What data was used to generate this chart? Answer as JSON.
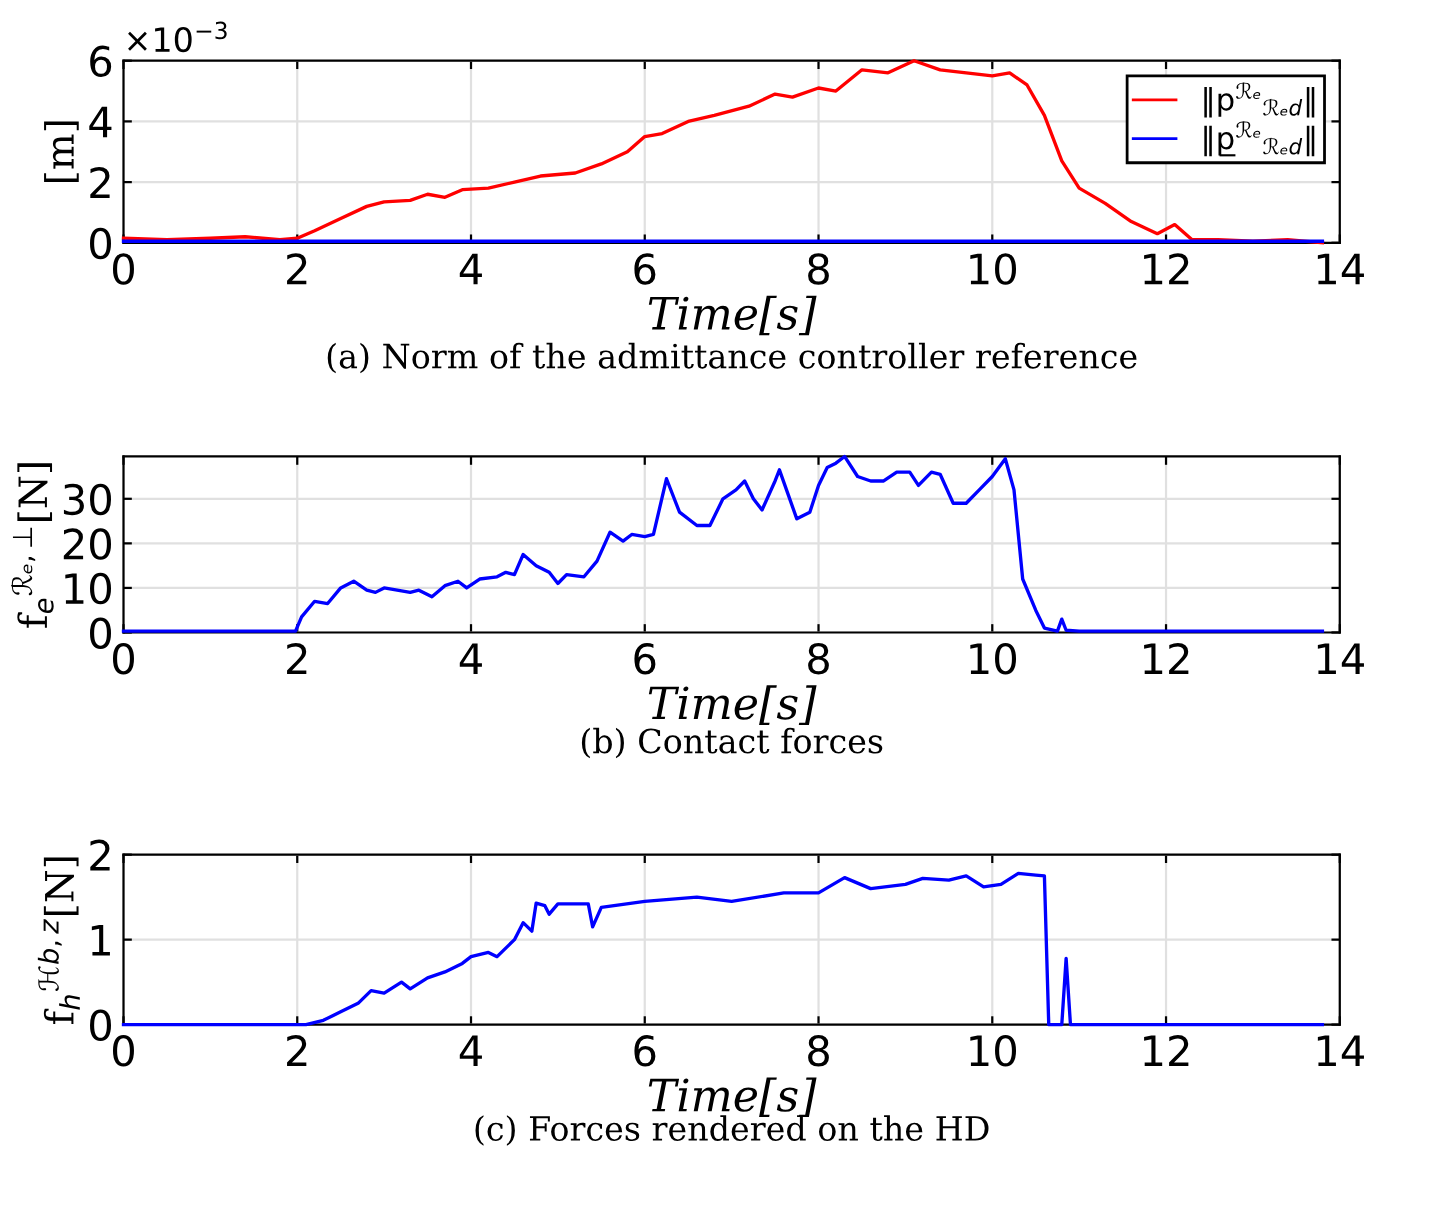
{
  "chart_data": [
    {
      "type": "line",
      "title": "(a) Norm of the admittance controller reference",
      "xlabel": "Time[s]",
      "ylabel": "[m]",
      "annotations": [
        "×10$^{−3}$"
      ],
      "xlim": [
        0,
        14
      ],
      "xticks": [
        0,
        2,
        4,
        6,
        8,
        10,
        12,
        14
      ],
      "ylim": [
        0,
        6
      ],
      "yticks": [
        0,
        2,
        4,
        6
      ],
      "grid": true,
      "legend": "top right",
      "series": [
        {
          "name": "‖p$^{ℛₑ}$$_{ℛₑd}$‖",
          "color": "#ff0000",
          "x": [
            0,
            0.5,
            1,
            1.4,
            1.8,
            2.0,
            2.2,
            2.5,
            2.8,
            3.0,
            3.3,
            3.5,
            3.7,
            3.9,
            4.2,
            4.5,
            4.8,
            5.2,
            5.5,
            5.8,
            6.0,
            6.2,
            6.5,
            6.8,
            7.2,
            7.5,
            7.7,
            8.0,
            8.2,
            8.5,
            8.8,
            9.1,
            9.4,
            9.7,
            10.0,
            10.2,
            10.4,
            10.6,
            10.8,
            11.0,
            11.3,
            11.6,
            11.9,
            12.1,
            12.3,
            12.6,
            13.0,
            13.4,
            13.8
          ],
          "values": [
            0.15,
            0.1,
            0.15,
            0.2,
            0.1,
            0.15,
            0.4,
            0.8,
            1.2,
            1.35,
            1.4,
            1.6,
            1.5,
            1.75,
            1.8,
            2.0,
            2.2,
            2.3,
            2.6,
            3.0,
            3.5,
            3.6,
            4.0,
            4.2,
            4.5,
            4.9,
            4.8,
            5.1,
            5.0,
            5.7,
            5.6,
            6.0,
            5.7,
            5.6,
            5.5,
            5.6,
            5.2,
            4.2,
            2.7,
            1.8,
            1.3,
            0.7,
            0.3,
            0.6,
            0.1,
            0.1,
            0.05,
            0.1,
            0.0
          ]
        },
        {
          "name": "‖p̲$^{ℛₑ}$$_{ℛₑd}$‖",
          "color": "#0000ff",
          "x": [
            0,
            13.8
          ],
          "values": [
            0.05,
            0.05
          ]
        }
      ]
    },
    {
      "type": "line",
      "title": "(b) Contact forces",
      "xlabel": "Time[s]",
      "ylabel": "f$_{e}$$^{ℛₑ,⊥}$[N]",
      "xlim": [
        0,
        14
      ],
      "xticks": [
        0,
        2,
        4,
        6,
        8,
        10,
        12,
        14
      ],
      "ylim": [
        0,
        39.5
      ],
      "yticks": [
        0,
        10,
        20,
        30
      ],
      "grid": true,
      "series": [
        {
          "color": "#0000ff",
          "x": [
            0,
            1.98,
            2.05,
            2.2,
            2.35,
            2.5,
            2.65,
            2.8,
            2.9,
            3.0,
            3.3,
            3.4,
            3.55,
            3.7,
            3.85,
            3.95,
            4.1,
            4.3,
            4.4,
            4.5,
            4.6,
            4.75,
            4.9,
            5.0,
            5.1,
            5.3,
            5.45,
            5.6,
            5.75,
            5.85,
            6.0,
            6.1,
            6.25,
            6.4,
            6.6,
            6.75,
            6.9,
            7.05,
            7.15,
            7.25,
            7.35,
            7.5,
            7.55,
            7.65,
            7.75,
            7.9,
            8.0,
            8.1,
            8.2,
            8.3,
            8.45,
            8.6,
            8.75,
            8.9,
            9.05,
            9.15,
            9.3,
            9.4,
            9.55,
            9.7,
            9.85,
            10.0,
            10.15,
            10.25,
            10.35,
            10.5,
            10.6,
            10.75,
            10.8,
            10.85,
            11.0,
            13.8
          ],
          "values": [
            0.3,
            0.3,
            3.5,
            7,
            6.5,
            10,
            11.5,
            9.5,
            9,
            10,
            9,
            9.5,
            8,
            10.5,
            11.5,
            10,
            12,
            12.5,
            13.5,
            13,
            17.5,
            15,
            13.5,
            11,
            13,
            12.5,
            16,
            22.5,
            20.5,
            22,
            21.5,
            22,
            34.5,
            27,
            24,
            24,
            30,
            32,
            34,
            30,
            27.5,
            34,
            36.5,
            31,
            25.5,
            27,
            33,
            37,
            38,
            39.5,
            35,
            34,
            34,
            36,
            36,
            33,
            36,
            35.5,
            29,
            29,
            32,
            35,
            39,
            32,
            12,
            5,
            1,
            0.3,
            3,
            0.5,
            0.3,
            0.3
          ]
        }
      ]
    },
    {
      "type": "line",
      "title": "(c) Forces rendered on the HD",
      "xlabel": "Time[s]",
      "ylabel": "f$_{h}$$^{ℋb,z}$[N]",
      "xlim": [
        0,
        14
      ],
      "xticks": [
        0,
        2,
        4,
        6,
        8,
        10,
        12,
        14
      ],
      "ylim": [
        0,
        2
      ],
      "yticks": [
        0,
        1,
        2
      ],
      "grid": true,
      "series": [
        {
          "color": "#0000ff",
          "x": [
            0,
            2.1,
            2.3,
            2.5,
            2.7,
            2.85,
            3.0,
            3.2,
            3.3,
            3.5,
            3.7,
            3.9,
            4.0,
            4.2,
            4.3,
            4.5,
            4.6,
            4.7,
            4.75,
            4.85,
            4.9,
            5.0,
            5.35,
            5.4,
            5.5,
            6.0,
            6.6,
            7.0,
            7.6,
            8.0,
            8.3,
            8.6,
            9.0,
            9.2,
            9.5,
            9.7,
            9.9,
            10.1,
            10.3,
            10.5,
            10.6,
            10.65,
            10.8,
            10.85,
            10.9,
            13.8
          ],
          "values": [
            0,
            0,
            0.05,
            0.15,
            0.25,
            0.4,
            0.37,
            0.5,
            0.42,
            0.55,
            0.62,
            0.72,
            0.8,
            0.85,
            0.8,
            1.0,
            1.2,
            1.1,
            1.43,
            1.4,
            1.3,
            1.42,
            1.42,
            1.15,
            1.38,
            1.45,
            1.5,
            1.45,
            1.55,
            1.55,
            1.73,
            1.6,
            1.65,
            1.72,
            1.7,
            1.75,
            1.62,
            1.65,
            1.78,
            1.76,
            1.75,
            0,
            0,
            0.78,
            0,
            0
          ]
        }
      ]
    }
  ]
}
